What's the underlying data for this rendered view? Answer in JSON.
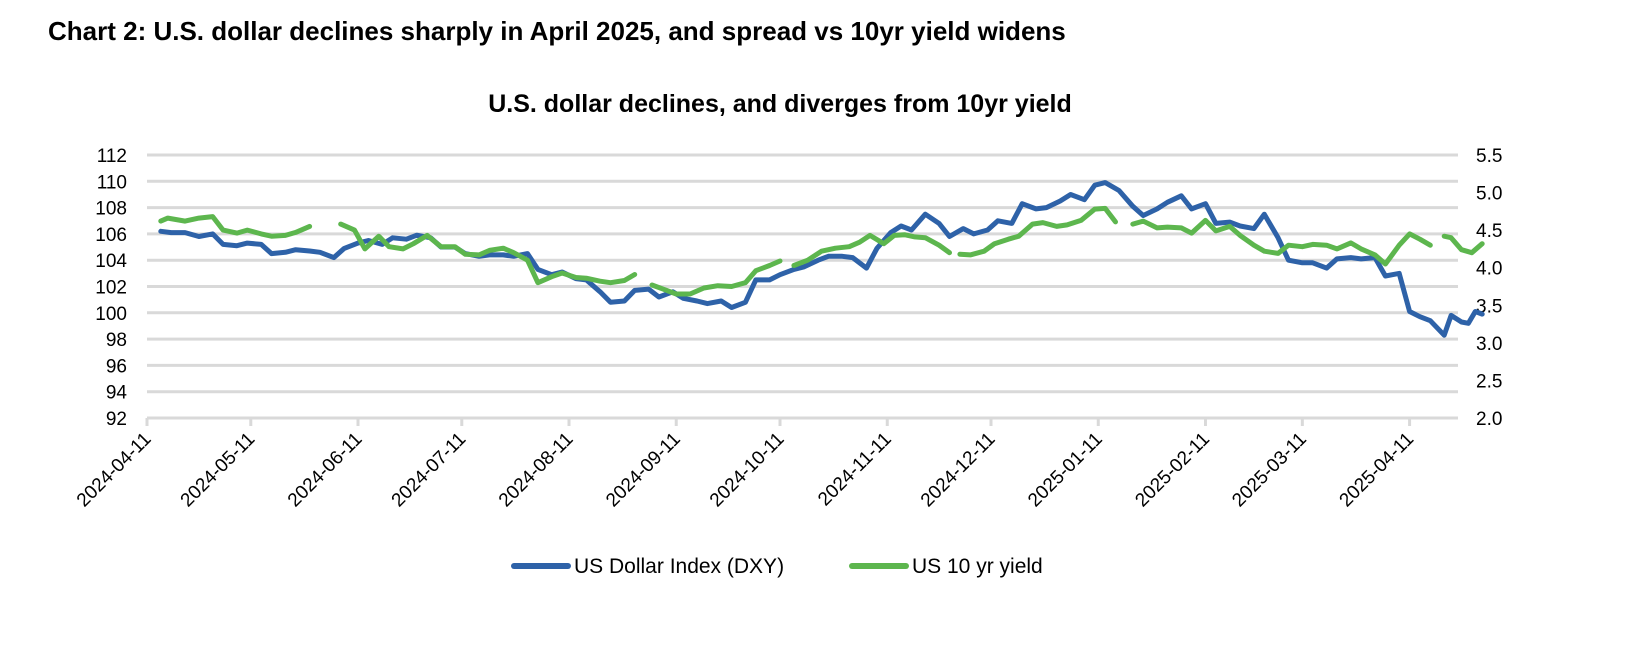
{
  "page_title": "Chart 2: U.S. dollar declines sharply in April 2025, and spread vs 10yr yield widens",
  "colors": {
    "dxy": "#2E62A8",
    "yield": "#5DB64E",
    "grid": "#D9D9D9"
  },
  "chart_data": {
    "type": "line",
    "title": "U.S. dollar declines, and diverges from 10yr yield",
    "x_tick_labels": [
      "2024-04-11",
      "2024-05-11",
      "2024-06-11",
      "2024-07-11",
      "2024-08-11",
      "2024-09-11",
      "2024-10-11",
      "2024-11-11",
      "2024-12-11",
      "2025-01-11",
      "2025-02-11",
      "2025-03-11",
      "2025-04-11"
    ],
    "xlim": [
      "2024-04-11",
      "2025-04-25"
    ],
    "y_left": {
      "lim": [
        92,
        112
      ],
      "ticks": [
        92,
        94,
        96,
        98,
        100,
        102,
        104,
        106,
        108,
        110,
        112
      ]
    },
    "y_right": {
      "lim": [
        2.0,
        5.5
      ],
      "ticks": [
        "2.0",
        "2.5",
        "3.0",
        "3.5",
        "4.0",
        "4.5",
        "5.0",
        "5.5"
      ]
    },
    "grid": true,
    "legend_position": "bottom",
    "series": [
      {
        "name": "US Dollar Index (DXY)",
        "axis": "left",
        "color": "#2E62A8",
        "points": [
          [
            "2024-04-15",
            106.2
          ],
          [
            "2024-04-18",
            106.1
          ],
          [
            "2024-04-22",
            106.1
          ],
          [
            "2024-04-26",
            105.8
          ],
          [
            "2024-04-30",
            106.0
          ],
          [
            "2024-05-03",
            105.2
          ],
          [
            "2024-05-07",
            105.1
          ],
          [
            "2024-05-10",
            105.3
          ],
          [
            "2024-05-14",
            105.2
          ],
          [
            "2024-05-17",
            104.5
          ],
          [
            "2024-05-21",
            104.6
          ],
          [
            "2024-05-24",
            104.8
          ],
          [
            "2024-05-28",
            104.7
          ],
          [
            "2024-05-31",
            104.6
          ],
          [
            "2024-06-04",
            104.2
          ],
          [
            "2024-06-07",
            104.9
          ],
          [
            "2024-06-11",
            105.3
          ],
          [
            "2024-06-14",
            105.5
          ],
          [
            "2024-06-18",
            105.2
          ],
          [
            "2024-06-21",
            105.7
          ],
          [
            "2024-06-25",
            105.6
          ],
          [
            "2024-06-28",
            105.9
          ],
          [
            "2024-07-02",
            105.7
          ],
          [
            "2024-07-05",
            105.0
          ],
          [
            "2024-07-09",
            105.0
          ],
          [
            "2024-07-12",
            104.5
          ],
          [
            "2024-07-16",
            104.3
          ],
          [
            "2024-07-19",
            104.4
          ],
          [
            "2024-07-23",
            104.4
          ],
          [
            "2024-07-26",
            104.3
          ],
          [
            "2024-07-30",
            104.5
          ],
          [
            "2024-08-02",
            103.3
          ],
          [
            "2024-08-06",
            102.9
          ],
          [
            "2024-08-09",
            103.1
          ],
          [
            "2024-08-13",
            102.6
          ],
          [
            "2024-08-16",
            102.5
          ],
          [
            "2024-08-20",
            101.6
          ],
          [
            "2024-08-23",
            100.8
          ],
          [
            "2024-08-27",
            100.9
          ],
          [
            "2024-08-30",
            101.7
          ],
          [
            "2024-09-03",
            101.8
          ],
          [
            "2024-09-06",
            101.2
          ],
          [
            "2024-09-10",
            101.6
          ],
          [
            "2024-09-13",
            101.1
          ],
          [
            "2024-09-17",
            100.9
          ],
          [
            "2024-09-20",
            100.7
          ],
          [
            "2024-09-24",
            100.9
          ],
          [
            "2024-09-27",
            100.4
          ],
          [
            "2024-10-01",
            100.8
          ],
          [
            "2024-10-04",
            102.5
          ],
          [
            "2024-10-08",
            102.5
          ],
          [
            "2024-10-11",
            102.9
          ],
          [
            "2024-10-15",
            103.3
          ],
          [
            "2024-10-18",
            103.5
          ],
          [
            "2024-10-22",
            104.0
          ],
          [
            "2024-10-25",
            104.3
          ],
          [
            "2024-10-29",
            104.3
          ],
          [
            "2024-11-01",
            104.2
          ],
          [
            "2024-11-05",
            103.4
          ],
          [
            "2024-11-08",
            104.9
          ],
          [
            "2024-11-12",
            106.1
          ],
          [
            "2024-11-15",
            106.6
          ],
          [
            "2024-11-18",
            106.3
          ],
          [
            "2024-11-22",
            107.5
          ],
          [
            "2024-11-26",
            106.8
          ],
          [
            "2024-11-29",
            105.8
          ],
          [
            "2024-12-03",
            106.4
          ],
          [
            "2024-12-06",
            106.0
          ],
          [
            "2024-12-10",
            106.3
          ],
          [
            "2024-12-13",
            107.0
          ],
          [
            "2024-12-17",
            106.8
          ],
          [
            "2024-12-20",
            108.3
          ],
          [
            "2024-12-24",
            107.9
          ],
          [
            "2024-12-27",
            108.0
          ],
          [
            "2024-12-31",
            108.5
          ],
          [
            "2025-01-03",
            109.0
          ],
          [
            "2025-01-07",
            108.6
          ],
          [
            "2025-01-10",
            109.7
          ],
          [
            "2025-01-13",
            109.9
          ],
          [
            "2025-01-17",
            109.3
          ],
          [
            "2025-01-21",
            108.1
          ],
          [
            "2025-01-24",
            107.4
          ],
          [
            "2025-01-28",
            107.9
          ],
          [
            "2025-01-31",
            108.4
          ],
          [
            "2025-02-04",
            108.9
          ],
          [
            "2025-02-07",
            107.9
          ],
          [
            "2025-02-11",
            108.3
          ],
          [
            "2025-02-14",
            106.8
          ],
          [
            "2025-02-18",
            106.9
          ],
          [
            "2025-02-21",
            106.6
          ],
          [
            "2025-02-25",
            106.4
          ],
          [
            "2025-02-28",
            107.5
          ],
          [
            "2025-03-04",
            105.7
          ],
          [
            "2025-03-07",
            104.0
          ],
          [
            "2025-03-11",
            103.8
          ],
          [
            "2025-03-14",
            103.8
          ],
          [
            "2025-03-18",
            103.4
          ],
          [
            "2025-03-21",
            104.1
          ],
          [
            "2025-03-25",
            104.2
          ],
          [
            "2025-03-28",
            104.1
          ],
          [
            "2025-04-01",
            104.2
          ],
          [
            "2025-04-04",
            102.8
          ],
          [
            "2025-04-08",
            103.0
          ],
          [
            "2025-04-11",
            100.1
          ],
          [
            "2025-04-14",
            99.7
          ],
          [
            "2025-04-17",
            99.4
          ],
          [
            "2025-04-21",
            98.3
          ],
          [
            "2025-04-23",
            99.8
          ],
          [
            "2025-04-26",
            99.3
          ],
          [
            "2025-04-28",
            99.2
          ],
          [
            "2025-04-30",
            100.1
          ],
          [
            "2025-05-02",
            99.9
          ]
        ]
      },
      {
        "name": "US 10 yr yield",
        "axis": "right",
        "color": "#5DB64E",
        "points": [
          [
            "2024-04-15",
            4.62
          ],
          [
            "2024-04-17",
            4.66
          ],
          [
            "2024-04-22",
            4.62
          ],
          [
            "2024-04-26",
            4.66
          ],
          [
            "2024-04-30",
            4.68
          ],
          [
            "2024-05-03",
            4.5
          ],
          [
            "2024-05-07",
            4.46
          ],
          [
            "2024-05-10",
            4.5
          ],
          [
            "2024-05-14",
            4.45
          ],
          [
            "2024-05-17",
            4.42
          ],
          [
            "2024-05-21",
            4.43
          ],
          [
            "2024-05-24",
            4.47
          ],
          [
            "2024-05-28",
            4.55
          ],
          null,
          [
            "2024-06-06",
            4.58
          ],
          [
            "2024-06-10",
            4.5
          ],
          [
            "2024-06-13",
            4.25
          ],
          [
            "2024-06-17",
            4.42
          ],
          [
            "2024-06-20",
            4.28
          ],
          [
            "2024-06-24",
            4.25
          ],
          [
            "2024-06-27",
            4.32
          ],
          [
            "2024-07-01",
            4.43
          ],
          [
            "2024-07-05",
            4.28
          ],
          [
            "2024-07-09",
            4.28
          ],
          [
            "2024-07-12",
            4.18
          ],
          [
            "2024-07-16",
            4.17
          ],
          [
            "2024-07-19",
            4.23
          ],
          [
            "2024-07-23",
            4.26
          ],
          [
            "2024-07-26",
            4.2
          ],
          [
            "2024-07-30",
            4.1
          ],
          [
            "2024-08-02",
            3.8
          ],
          [
            "2024-08-06",
            3.88
          ],
          [
            "2024-08-09",
            3.93
          ],
          [
            "2024-08-13",
            3.87
          ],
          [
            "2024-08-16",
            3.86
          ],
          [
            "2024-08-20",
            3.82
          ],
          [
            "2024-08-23",
            3.8
          ],
          [
            "2024-08-27",
            3.83
          ],
          [
            "2024-08-30",
            3.91
          ],
          null,
          [
            "2024-09-04",
            3.77
          ],
          [
            "2024-09-07",
            3.72
          ],
          [
            "2024-09-11",
            3.65
          ],
          [
            "2024-09-15",
            3.65
          ],
          [
            "2024-09-19",
            3.73
          ],
          [
            "2024-09-23",
            3.76
          ],
          [
            "2024-09-27",
            3.75
          ],
          [
            "2024-10-01",
            3.8
          ],
          [
            "2024-10-04",
            3.96
          ],
          [
            "2024-10-08",
            4.03
          ],
          [
            "2024-10-11",
            4.09
          ],
          null,
          [
            "2024-10-15",
            4.03
          ],
          [
            "2024-10-19",
            4.1
          ],
          [
            "2024-10-23",
            4.22
          ],
          [
            "2024-10-27",
            4.26
          ],
          [
            "2024-10-31",
            4.28
          ],
          [
            "2024-11-03",
            4.34
          ],
          [
            "2024-11-06",
            4.43
          ],
          [
            "2024-11-10",
            4.32
          ],
          [
            "2024-11-13",
            4.43
          ],
          [
            "2024-11-16",
            4.44
          ],
          [
            "2024-11-19",
            4.41
          ],
          [
            "2024-11-22",
            4.4
          ],
          [
            "2024-11-26",
            4.3
          ],
          [
            "2024-11-29",
            4.2
          ],
          null,
          [
            "2024-12-02",
            4.18
          ],
          [
            "2024-12-05",
            4.17
          ],
          [
            "2024-12-09",
            4.22
          ],
          [
            "2024-12-12",
            4.32
          ],
          [
            "2024-12-16",
            4.38
          ],
          [
            "2024-12-19",
            4.42
          ],
          [
            "2024-12-23",
            4.58
          ],
          [
            "2024-12-26",
            4.6
          ],
          [
            "2024-12-30",
            4.55
          ],
          [
            "2025-01-02",
            4.57
          ],
          [
            "2025-01-06",
            4.63
          ],
          [
            "2025-01-10",
            4.78
          ],
          [
            "2025-01-13",
            4.79
          ],
          [
            "2025-01-16",
            4.61
          ],
          null,
          [
            "2025-01-21",
            4.58
          ],
          [
            "2025-01-24",
            4.62
          ],
          [
            "2025-01-28",
            4.53
          ],
          [
            "2025-01-31",
            4.54
          ],
          [
            "2025-02-04",
            4.53
          ],
          [
            "2025-02-07",
            4.46
          ],
          [
            "2025-02-11",
            4.63
          ],
          [
            "2025-02-14",
            4.49
          ],
          [
            "2025-02-18",
            4.55
          ],
          [
            "2025-02-21",
            4.43
          ],
          [
            "2025-02-25",
            4.3
          ],
          [
            "2025-02-28",
            4.22
          ],
          [
            "2025-03-04",
            4.19
          ],
          [
            "2025-03-07",
            4.3
          ],
          [
            "2025-03-11",
            4.28
          ],
          [
            "2025-03-14",
            4.31
          ],
          [
            "2025-03-18",
            4.3
          ],
          [
            "2025-03-21",
            4.25
          ],
          [
            "2025-03-25",
            4.33
          ],
          [
            "2025-03-28",
            4.25
          ],
          [
            "2025-04-01",
            4.17
          ],
          [
            "2025-04-04",
            4.05
          ],
          [
            "2025-04-08",
            4.3
          ],
          [
            "2025-04-11",
            4.45
          ],
          [
            "2025-04-14",
            4.38
          ],
          [
            "2025-04-17",
            4.3
          ],
          null,
          [
            "2025-04-21",
            4.42
          ],
          [
            "2025-04-23",
            4.4
          ],
          [
            "2025-04-26",
            4.24
          ],
          [
            "2025-04-29",
            4.2
          ],
          [
            "2025-05-02",
            4.32
          ]
        ]
      }
    ]
  }
}
